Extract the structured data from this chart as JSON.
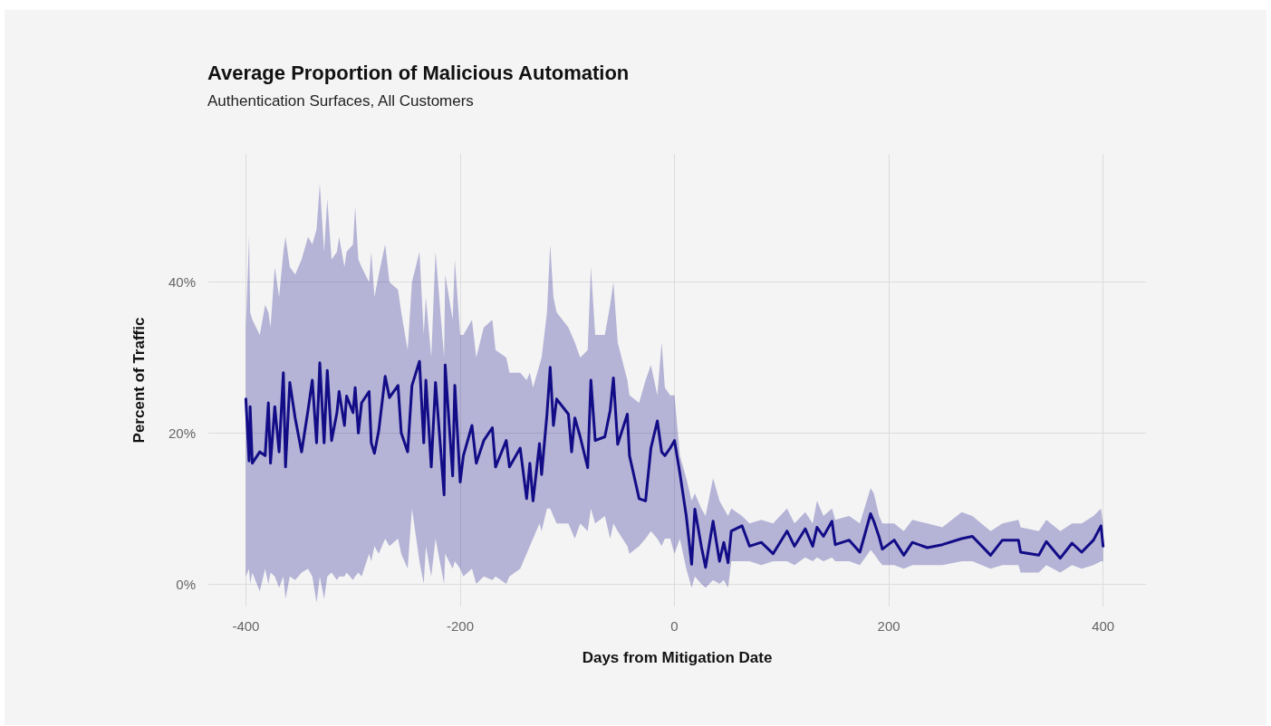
{
  "chart_data": {
    "type": "line",
    "title": "Average Proportion of Malicious Automation",
    "subtitle": "Authentication Surfaces, All Customers",
    "xlabel": "Days from Mitigation Date",
    "ylabel": "Percent of Traffic",
    "xlim": [
      -435,
      440
    ],
    "xticks": [
      -400,
      -200,
      0,
      200,
      400
    ],
    "ylim": [
      -3,
      57
    ],
    "yticks": [
      {
        "value": 0,
        "label": "0%"
      },
      {
        "value": 20,
        "label": "20%"
      },
      {
        "value": 40,
        "label": "40%"
      }
    ],
    "grid": true,
    "marker": "none",
    "line_style": "solid",
    "series": [
      {
        "color": "#120c87",
        "x": [
          -400,
          -397,
          -396,
          -394,
          -387,
          -382,
          -379,
          -377,
          -373,
          -369,
          -365,
          -363,
          -359,
          -354,
          -348,
          -342,
          -338,
          -334,
          -331,
          -327,
          -324,
          -320,
          -315,
          -313,
          -308,
          -306,
          -300,
          -298,
          -295,
          -292,
          -285,
          -283,
          -280,
          -276,
          -270,
          -266,
          -258,
          -255,
          -249,
          -245,
          -238,
          -234,
          -232,
          -227,
          -223,
          -215,
          -214,
          -207,
          -205,
          -200,
          -197,
          -189,
          -185,
          -178,
          -170,
          -167,
          -157,
          -154,
          -144,
          -138,
          -135,
          -132,
          -126,
          -124,
          -119,
          -116,
          -113,
          -110,
          -99,
          -96,
          -93,
          -88,
          -81,
          -78,
          -74,
          -65,
          -60,
          -57,
          -53,
          -44,
          -42,
          -33,
          -27,
          -22,
          -16,
          -12,
          -9,
          -4,
          0,
          5,
          11,
          16,
          19,
          25,
          29,
          36,
          42,
          46,
          50,
          53,
          63,
          70,
          81,
          92,
          105,
          112,
          122,
          129,
          133,
          139,
          147,
          150,
          163,
          173,
          183,
          186,
          191,
          194,
          205,
          214,
          222,
          236,
          250,
          268,
          278,
          295,
          306,
          321,
          323,
          340,
          347,
          360,
          371,
          380,
          391,
          398,
          400
        ],
        "values": [
          24.5,
          16.3,
          23.5,
          16,
          17.5,
          17,
          24,
          16,
          23.5,
          17.5,
          28,
          15.5,
          26.7,
          22,
          17.5,
          23,
          27,
          18.7,
          29.3,
          18.7,
          28.3,
          19,
          22.7,
          25.5,
          21,
          24.9,
          22.7,
          26,
          20,
          24,
          25.5,
          18.7,
          17.3,
          20.3,
          27.5,
          24.7,
          26.3,
          20,
          17.5,
          26.3,
          29.5,
          18.7,
          27,
          15.5,
          26.7,
          11.8,
          29,
          14.3,
          26.3,
          13.5,
          17,
          21,
          16,
          19,
          20.7,
          15.5,
          19,
          15.5,
          18,
          11.3,
          16,
          11,
          18.6,
          14.5,
          22.5,
          28.7,
          21,
          24.5,
          22.5,
          17.5,
          22,
          19.5,
          15.4,
          27,
          19,
          19.5,
          23,
          27.3,
          18.5,
          22.5,
          17,
          11.3,
          11,
          18,
          21.6,
          17.5,
          17,
          18,
          19,
          14.7,
          9,
          2.6,
          9.9,
          5,
          2.2,
          8.3,
          3,
          5.5,
          2.8,
          7,
          7.7,
          5,
          5.5,
          4,
          7,
          5,
          7.3,
          5,
          7.5,
          6.3,
          8.3,
          5.2,
          5.8,
          4.2,
          9.3,
          8.3,
          6.2,
          4.6,
          5.8,
          3.8,
          5.5,
          4.8,
          5.2,
          6,
          6.3,
          3.8,
          5.8,
          5.8,
          4.2,
          3.8,
          5.6,
          3.4,
          5.4,
          4.2,
          5.8,
          7.7,
          5
        ],
        "lower": [
          1,
          2,
          0,
          1.5,
          -1,
          2,
          0,
          1.5,
          1,
          -0.5,
          1,
          -2,
          1,
          0.5,
          1.5,
          2,
          1,
          -2.5,
          1,
          -2,
          1,
          1.5,
          0.5,
          1,
          1,
          1.5,
          0.5,
          1,
          1.5,
          1,
          4,
          3,
          5,
          4,
          6,
          5,
          6,
          4,
          2,
          10,
          3,
          0,
          5,
          1,
          6,
          0,
          4,
          2,
          3,
          2,
          1,
          2,
          0,
          1,
          0.5,
          1,
          0,
          1,
          2,
          4,
          5,
          6,
          8,
          7,
          10,
          10,
          9,
          8,
          8,
          7,
          6,
          8,
          7,
          10,
          8,
          9,
          6,
          8,
          7,
          5,
          4,
          5,
          6,
          7,
          6,
          5,
          6,
          6,
          4,
          6,
          2,
          -0.5,
          1,
          0,
          -0.5,
          0.5,
          0,
          0.5,
          -0.5,
          3,
          3,
          3,
          2.5,
          3,
          3,
          2.5,
          3.5,
          3,
          3.5,
          3,
          3.5,
          3,
          3,
          2.5,
          4.5,
          4,
          3,
          2.5,
          2.5,
          2,
          2.5,
          2.5,
          2.5,
          3,
          3,
          2,
          2.5,
          2.5,
          1.5,
          1.5,
          2.5,
          1.5,
          2.5,
          2,
          2.5,
          3,
          3
        ],
        "upper": [
          34,
          46,
          36,
          35,
          33,
          37,
          36,
          34,
          42,
          38,
          44,
          46,
          42,
          41,
          43,
          46,
          45,
          47,
          53,
          44,
          51,
          43,
          44,
          46,
          42,
          44,
          45,
          50,
          43,
          42,
          40,
          44,
          38,
          41,
          45,
          40,
          39,
          36,
          31,
          40,
          44,
          33,
          38,
          30,
          44,
          30,
          41,
          35,
          43,
          33,
          33,
          35,
          30,
          34,
          35,
          31,
          30,
          28,
          28,
          27,
          28,
          26,
          29,
          30,
          36,
          45,
          38,
          36,
          34,
          33,
          32,
          30,
          31,
          42,
          33,
          33,
          37,
          40,
          32,
          27,
          25,
          24,
          27,
          29,
          25,
          32,
          26,
          25,
          25,
          17,
          14,
          11,
          12,
          10,
          9,
          14,
          11,
          10,
          9,
          10,
          9,
          8,
          8.5,
          8,
          10,
          8,
          9.5,
          8,
          11,
          9,
          10,
          8.5,
          9,
          8,
          12.7,
          12,
          9,
          8,
          8,
          7,
          8.5,
          8,
          7.5,
          9.5,
          9,
          7,
          8,
          8.5,
          7.5,
          7,
          8.5,
          7,
          8,
          8,
          9,
          10,
          8
        ]
      }
    ]
  }
}
